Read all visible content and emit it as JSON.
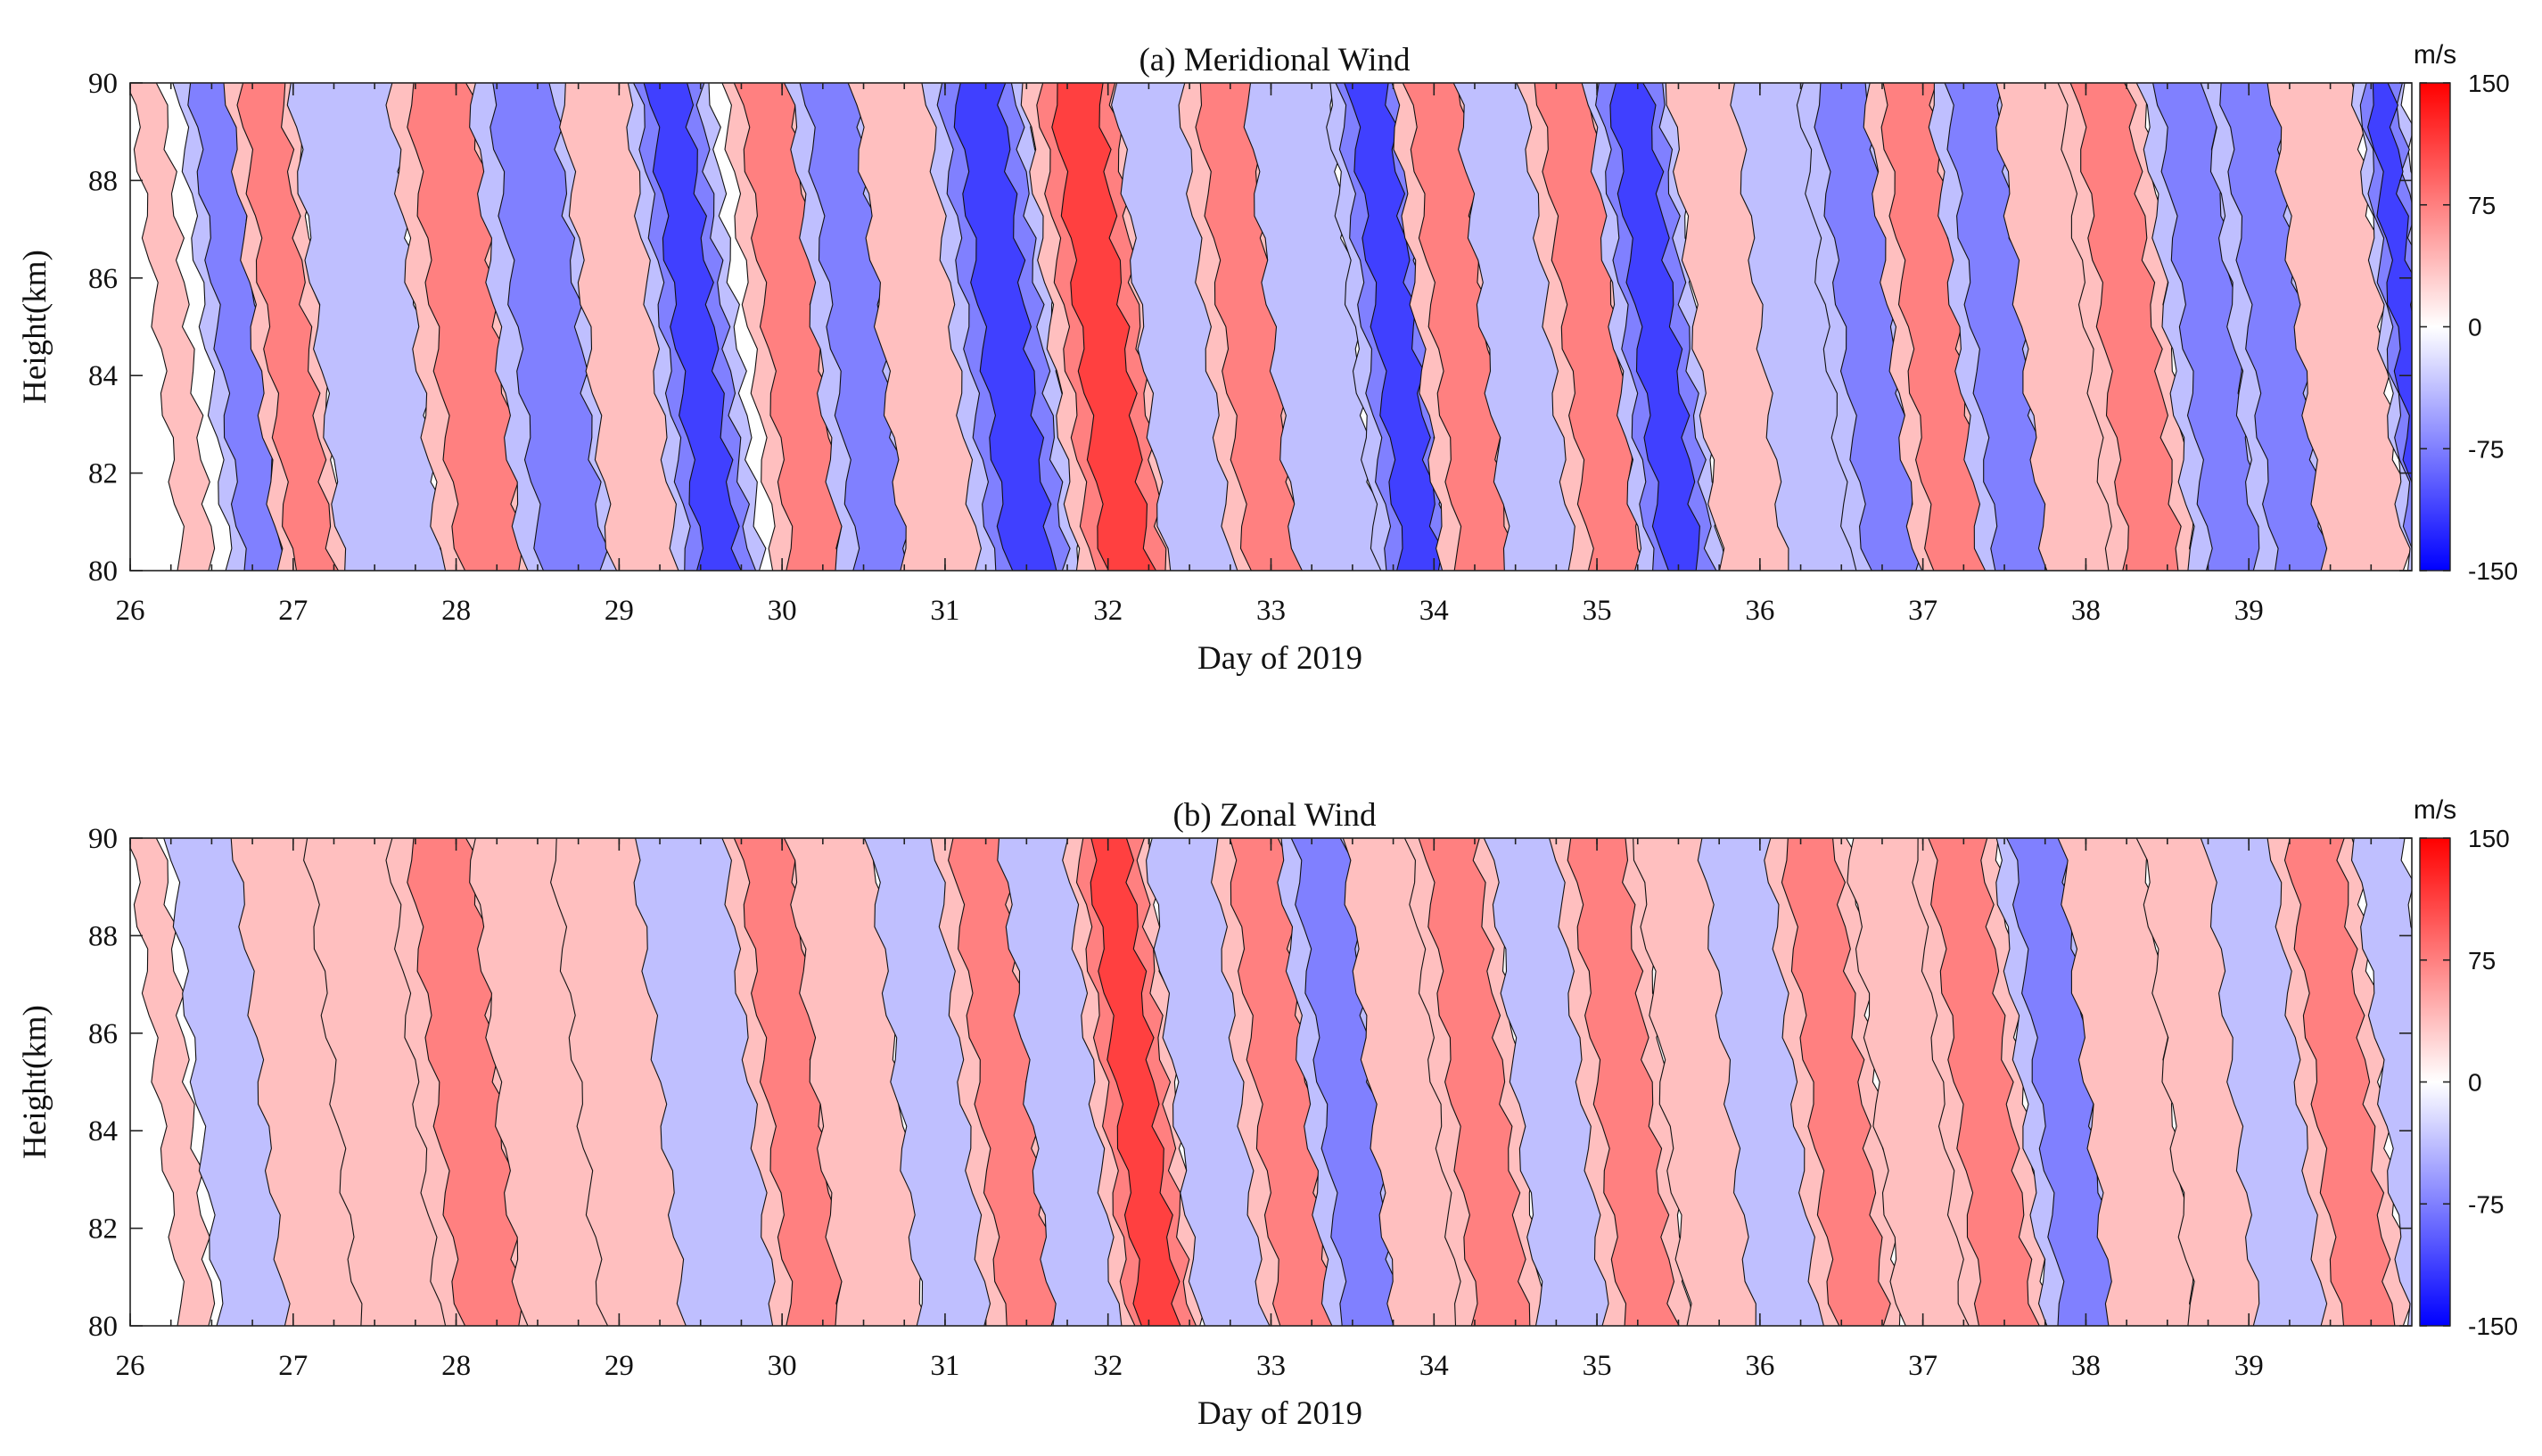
{
  "chart_data": [
    {
      "type": "heatmap",
      "title": "(a) Meridional Wind",
      "xlabel": "Day of 2019",
      "ylabel": "Height(km)",
      "xlim": [
        26,
        40
      ],
      "ylim": [
        80,
        90
      ],
      "x_ticks": [
        "26",
        "27",
        "28",
        "29",
        "30",
        "31",
        "32",
        "33",
        "34",
        "35",
        "36",
        "37",
        "38",
        "39"
      ],
      "y_ticks": [
        "80",
        "82",
        "84",
        "86",
        "88",
        "90"
      ],
      "colorbar": {
        "unit": "m/s",
        "range": [
          -150,
          150
        ],
        "ticks": [
          "150",
          "75",
          "0",
          "-75",
          "-150"
        ],
        "low_color": "#0000ff",
        "mid_color": "#ffffff",
        "high_color": "#ff0000"
      },
      "series": [
        {
          "name": "phase_bands_wind_m_s",
          "x": [
            26.1,
            26.5,
            26.8,
            27.3,
            27.9,
            28.4,
            28.9,
            29.3,
            29.9,
            30.3,
            30.7,
            31.2,
            31.8,
            32.3,
            32.7,
            33.1,
            33.6,
            34.0,
            34.4,
            34.8,
            35.2,
            35.7,
            36.1,
            36.5,
            36.9,
            37.3,
            37.7,
            38.1,
            38.6,
            39.0,
            39.4,
            39.8
          ],
          "values": [
            25,
            -60,
            70,
            -35,
            80,
            -90,
            30,
            -110,
            85,
            -70,
            40,
            -100,
            105,
            -40,
            60,
            -30,
            -110,
            80,
            -50,
            90,
            -95,
            30,
            -40,
            -80,
            75,
            -90,
            40,
            85,
            -60,
            -70,
            50,
            -120
          ]
        }
      ]
    },
    {
      "type": "heatmap",
      "title": "(b) Zonal Wind",
      "xlabel": "Day of 2019",
      "ylabel": "Height(km)",
      "xlim": [
        26,
        40
      ],
      "ylim": [
        80,
        90
      ],
      "x_ticks": [
        "26",
        "27",
        "28",
        "29",
        "30",
        "31",
        "32",
        "33",
        "34",
        "35",
        "36",
        "37",
        "38",
        "39"
      ],
      "y_ticks": [
        "80",
        "82",
        "84",
        "86",
        "88",
        "90"
      ],
      "colorbar": {
        "unit": "m/s",
        "range": [
          -150,
          150
        ],
        "ticks": [
          "150",
          "75",
          "0",
          "-75",
          "-150"
        ],
        "low_color": "#0000ff",
        "mid_color": "#ffffff",
        "high_color": "#ff0000"
      },
      "series": [
        {
          "name": "phase_bands_wind_m_s",
          "x": [
            26.1,
            26.5,
            26.9,
            27.4,
            27.9,
            28.4,
            28.9,
            29.4,
            29.9,
            30.3,
            30.8,
            31.2,
            31.6,
            32.0,
            32.5,
            32.9,
            33.3,
            33.7,
            34.1,
            34.6,
            35.0,
            35.5,
            35.9,
            36.3,
            36.8,
            37.2,
            37.7,
            38.1,
            38.6,
            39.0,
            39.4,
            39.8
          ],
          "values": [
            50,
            -25,
            40,
            30,
            70,
            40,
            20,
            -45,
            80,
            55,
            -30,
            65,
            -40,
            95,
            -20,
            85,
            -70,
            45,
            60,
            -40,
            70,
            30,
            -50,
            80,
            40,
            70,
            -75,
            35,
            45,
            -35,
            60,
            -55
          ]
        }
      ]
    }
  ]
}
